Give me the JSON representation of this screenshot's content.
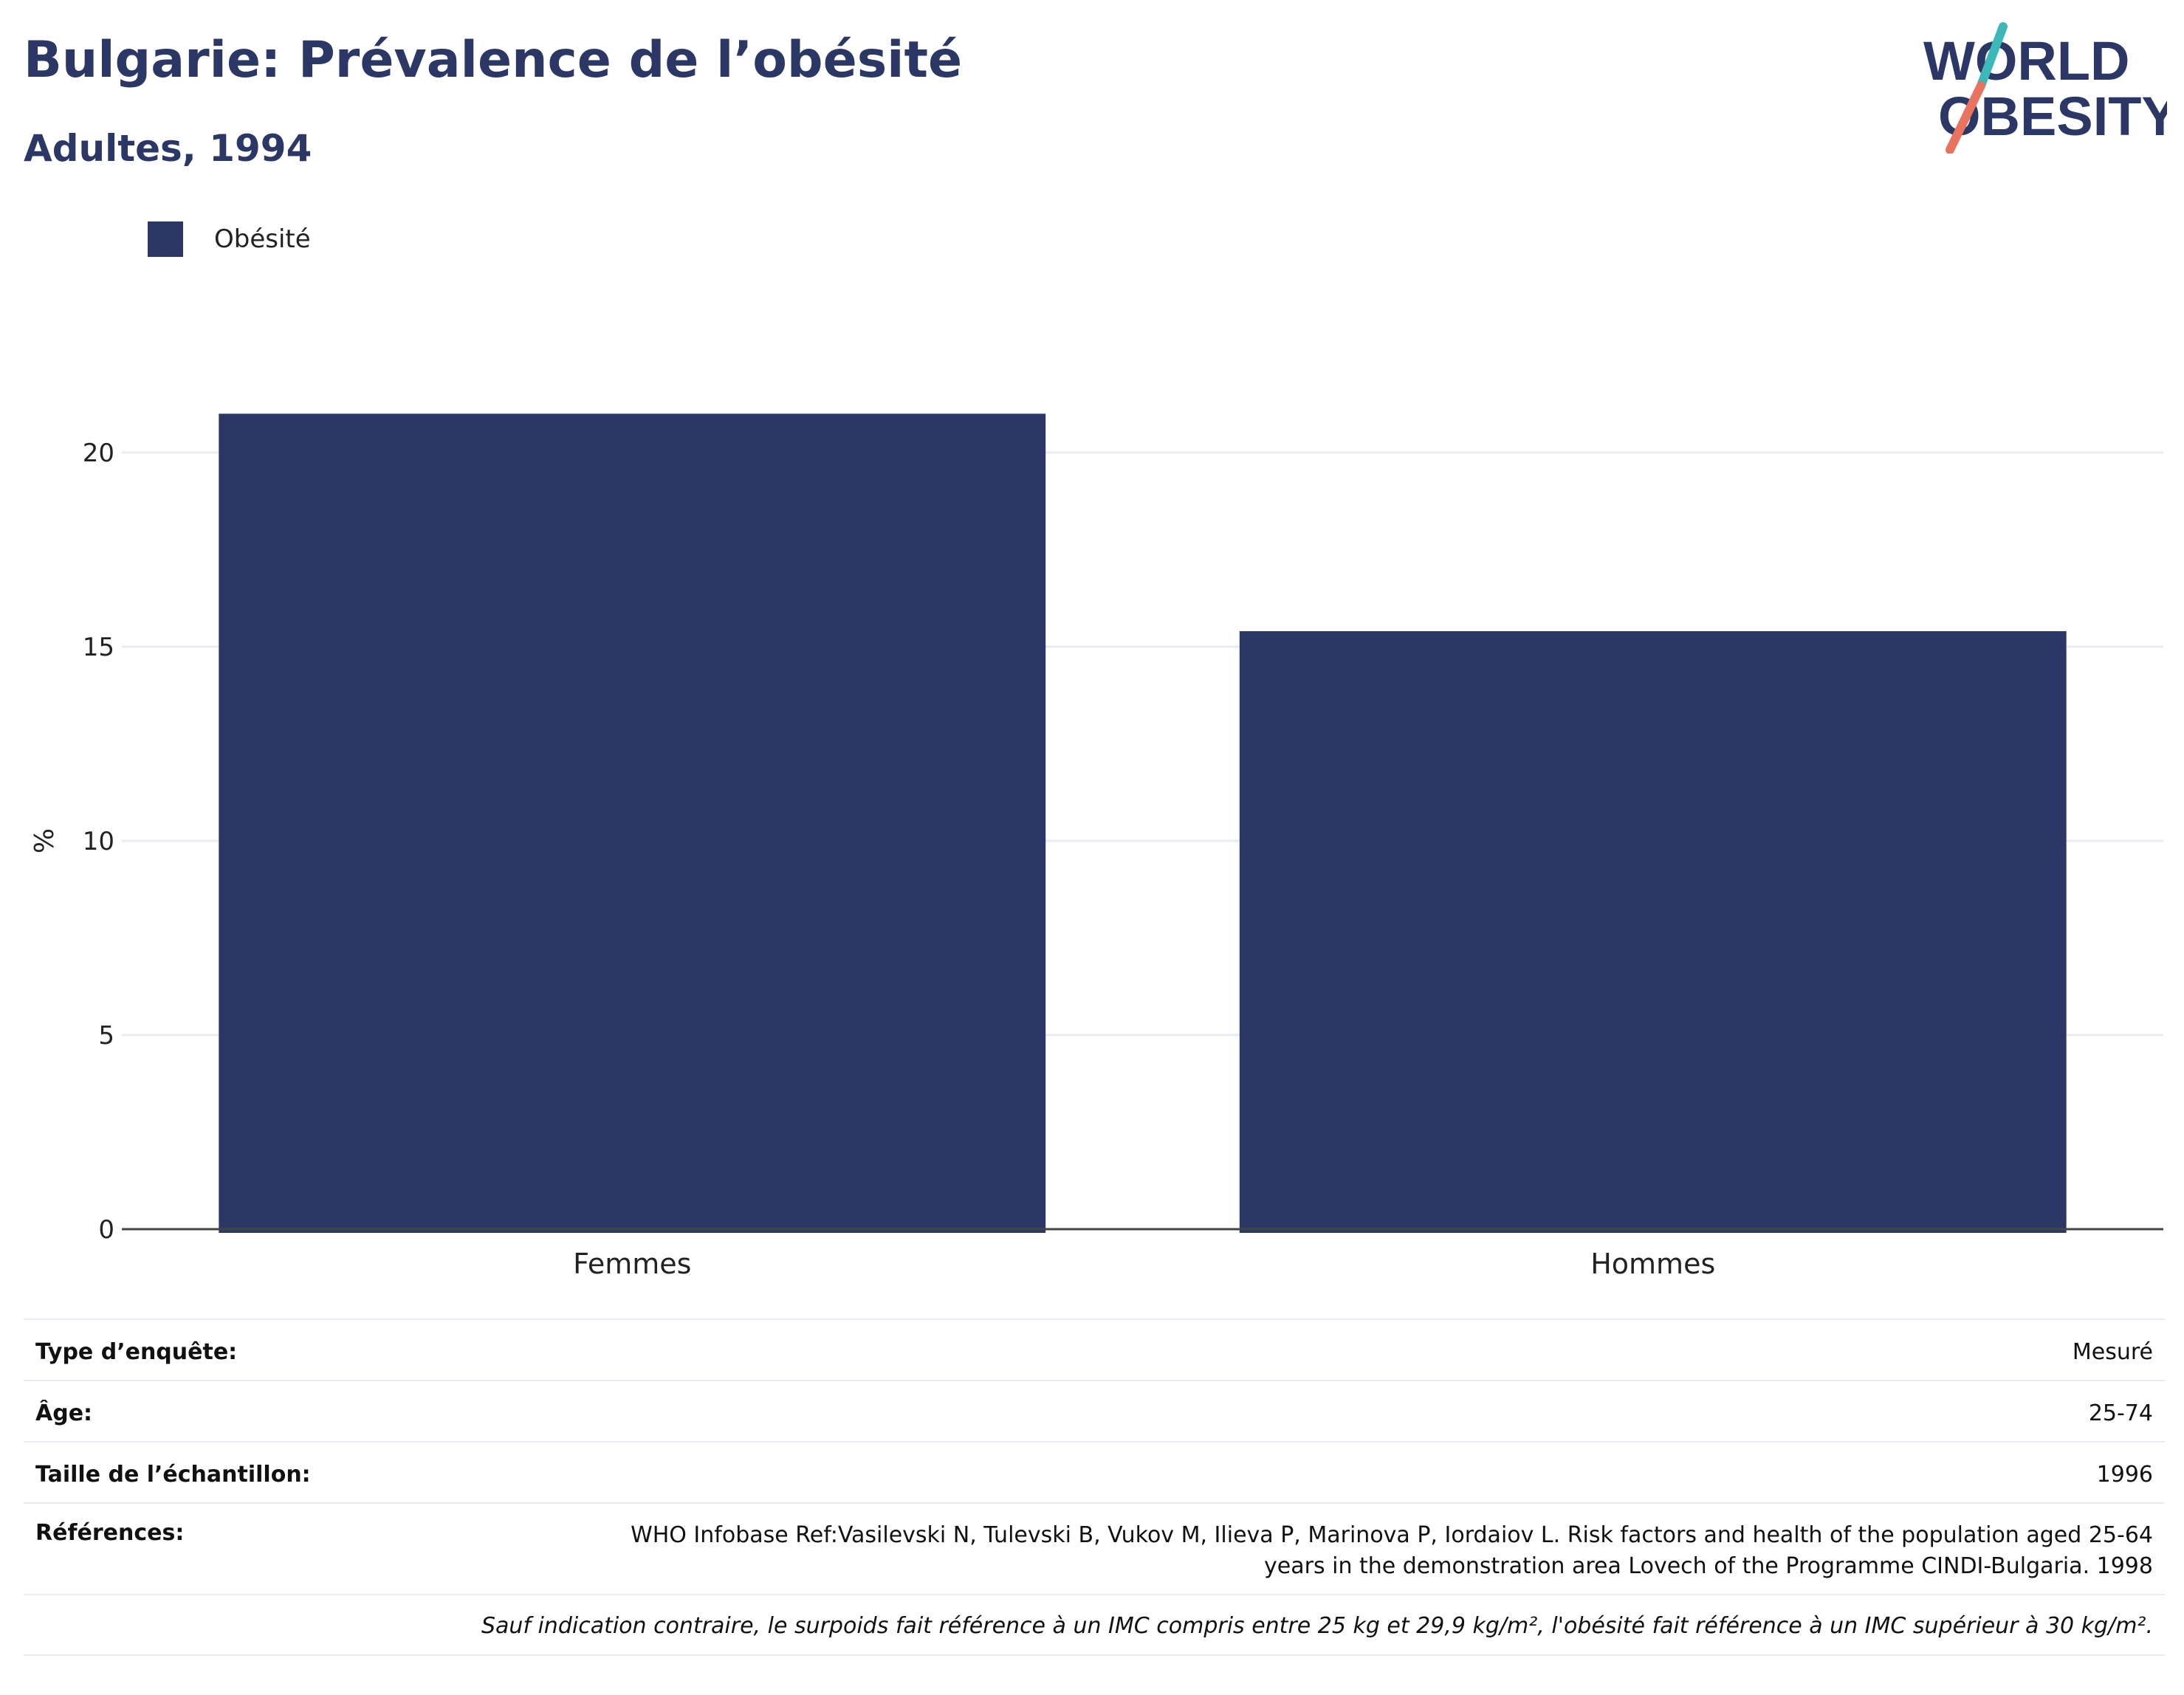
{
  "header": {
    "title": "Bulgarie: Prévalence de l’obésité",
    "subtitle": "Adultes, 1994"
  },
  "logo": {
    "line1": "WORLD",
    "line2": "OBESITY",
    "colors": {
      "text": "#2b3764",
      "slash_top": "#3cb8b8",
      "slash_bottom": "#e8735e"
    }
  },
  "legend": {
    "label": "Obésité"
  },
  "chart_data": {
    "type": "bar",
    "categories": [
      "Femmes",
      "Hommes"
    ],
    "series": [
      {
        "name": "Obésité",
        "values": [
          21.0,
          15.4
        ],
        "color": "#2b3764"
      }
    ],
    "ylabel": "%",
    "ylim": [
      0,
      22
    ],
    "yticks": [
      0,
      5,
      10,
      15,
      20
    ],
    "grid": true,
    "legend_position": "top-left"
  },
  "info": {
    "survey_type": {
      "label": "Type d’enquête:",
      "value": "Mesuré"
    },
    "age": {
      "label": "Âge:",
      "value": "25-74"
    },
    "sample_size": {
      "label": "Taille de l’échantillon:",
      "value": "1996"
    },
    "references": {
      "label": "Références:",
      "value": "WHO Infobase Ref:Vasilevski N, Tulevski B, Vukov M, Ilieva P, Marinova P, Iordaiov L. Risk factors and health of the population aged 25-64 years in the demonstration area Lovech of the Programme CINDI-Bulgaria. 1998"
    },
    "note": "Sauf indication contraire, le surpoids fait référence à un IMC compris entre 25 kg et 29,9 kg/m², l'obésité fait référence à un IMC supérieur à 30 kg/m²."
  }
}
